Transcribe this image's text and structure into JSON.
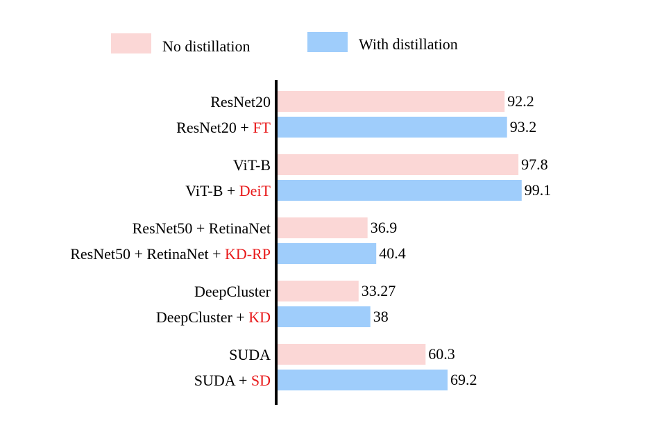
{
  "chart_data": {
    "type": "bar",
    "orientation": "horizontal",
    "grid": false,
    "legend_position": "top",
    "colors": {
      "no_distillation": "#fbd7d6",
      "with_distillation": "#9fcdfb",
      "highlight_text": "#e8191a",
      "axis": "#000000"
    },
    "legend": [
      {
        "key": "no_distillation",
        "label": "No distillation"
      },
      {
        "key": "with_distillation",
        "label": "With distillation"
      }
    ],
    "groups": [
      {
        "bars": [
          {
            "series": "no_distillation",
            "label": "ResNet20",
            "highlight": "",
            "value": 92.2,
            "value_label": "92.2"
          },
          {
            "series": "with_distillation",
            "label": "ResNet20 + ",
            "highlight": "FT",
            "value": 93.2,
            "value_label": "93.2"
          }
        ]
      },
      {
        "bars": [
          {
            "series": "no_distillation",
            "label": "ViT-B",
            "highlight": "",
            "value": 97.8,
            "value_label": "97.8"
          },
          {
            "series": "with_distillation",
            "label": "ViT-B + ",
            "highlight": "DeiT",
            "value": 99.1,
            "value_label": "99.1"
          }
        ]
      },
      {
        "bars": [
          {
            "series": "no_distillation",
            "label": "ResNet50 + RetinaNet",
            "highlight": "",
            "value": 36.9,
            "value_label": "36.9"
          },
          {
            "series": "with_distillation",
            "label": "ResNet50 + RetinaNet + ",
            "highlight": "KD-RP",
            "value": 40.4,
            "value_label": "40.4"
          }
        ]
      },
      {
        "bars": [
          {
            "series": "no_distillation",
            "label": "DeepCluster",
            "highlight": "",
            "value": 33.27,
            "value_label": "33.27"
          },
          {
            "series": "with_distillation",
            "label": "DeepCluster + ",
            "highlight": "KD",
            "value": 38,
            "value_label": "38"
          }
        ]
      },
      {
        "bars": [
          {
            "series": "no_distillation",
            "label": "SUDA",
            "highlight": "",
            "value": 60.3,
            "value_label": "60.3"
          },
          {
            "series": "with_distillation",
            "label": "SUDA + ",
            "highlight": "SD",
            "value": 69.2,
            "value_label": "69.2"
          }
        ]
      }
    ]
  }
}
